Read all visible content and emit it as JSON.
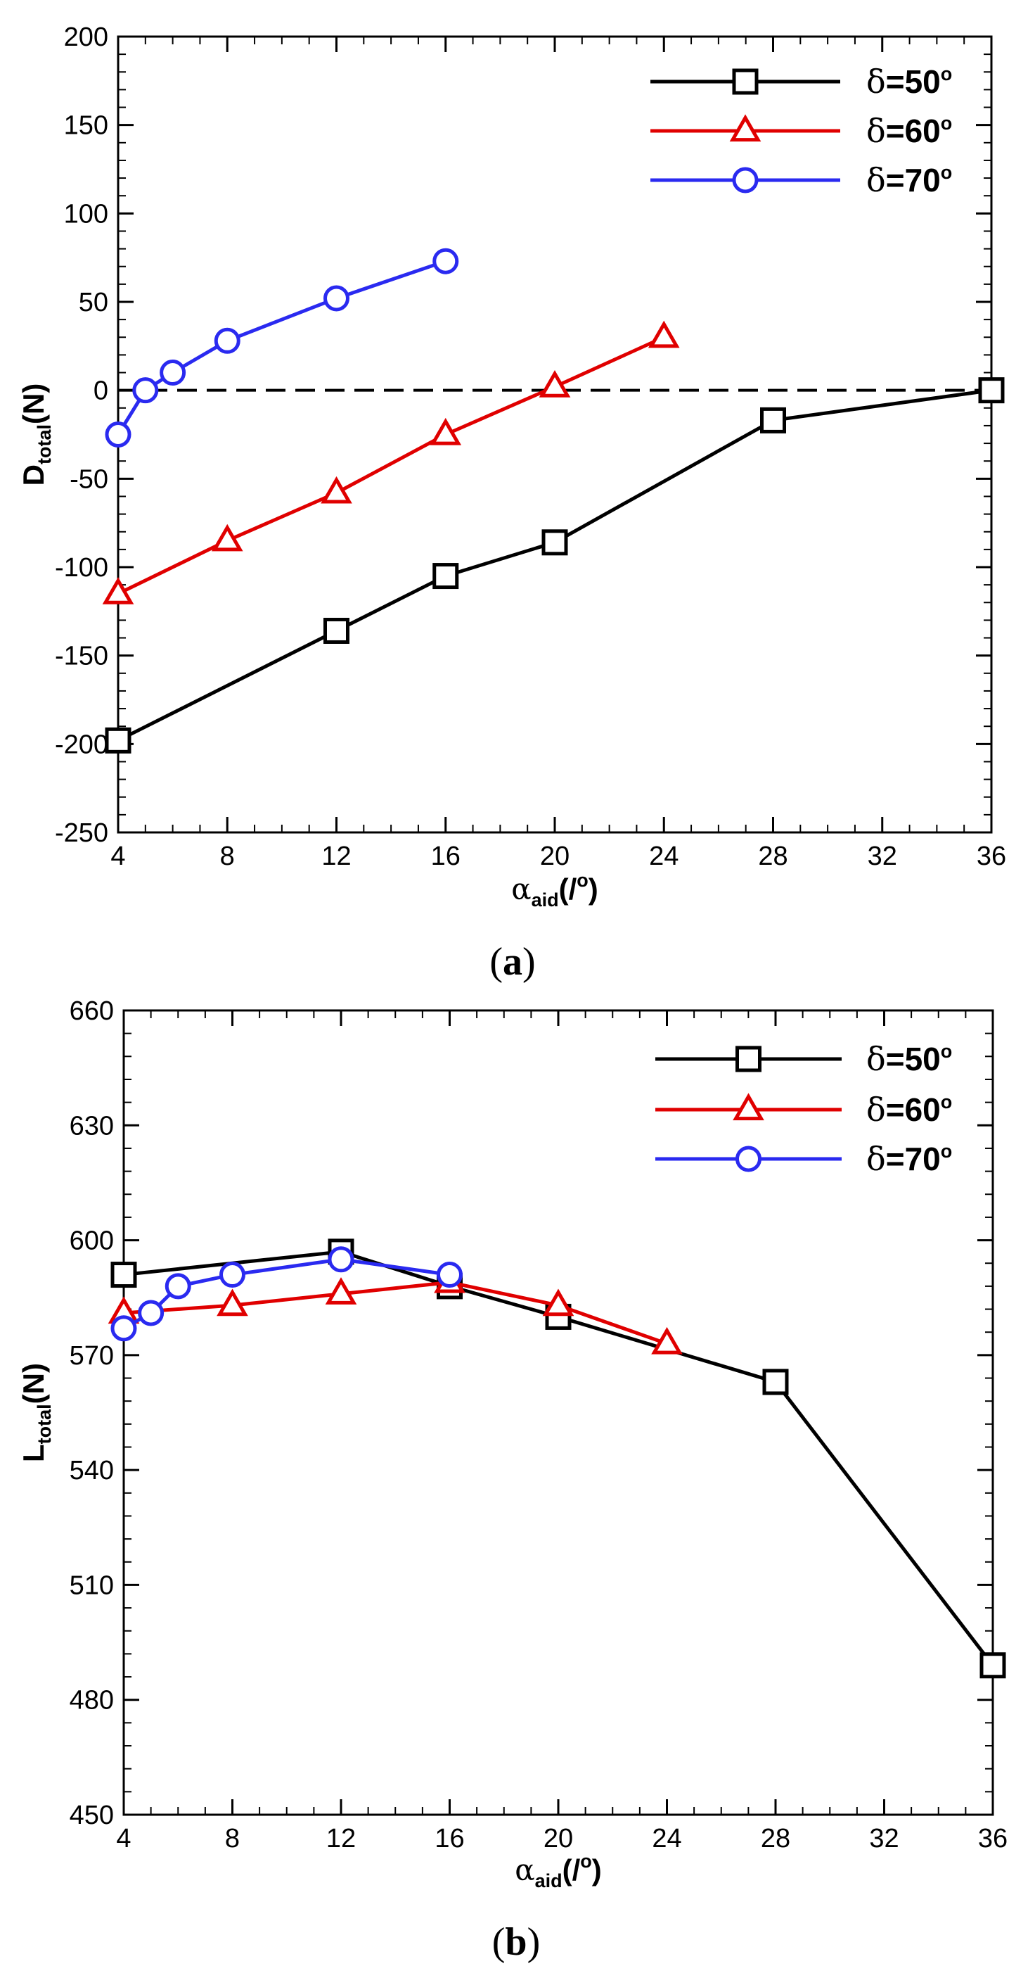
{
  "chart_data": [
    {
      "type": "line",
      "panel": "a",
      "caption": {
        "open": "(",
        "letter": "a",
        "close": ")"
      },
      "ylabel": {
        "main": "D",
        "sub": "total",
        "tail": "(N)"
      },
      "xlabel": {
        "greek": "α",
        "sub": "aid",
        "tail": "(/",
        "sup": "o",
        "close": ")"
      },
      "xlim": [
        4,
        36
      ],
      "ylim": [
        -250,
        200
      ],
      "xticks": [
        4,
        8,
        12,
        16,
        20,
        24,
        28,
        32,
        36
      ],
      "yticks": [
        -250,
        -200,
        -150,
        -100,
        -50,
        0,
        50,
        100,
        150,
        200
      ],
      "reference_line": {
        "y": 0,
        "style": "dashed"
      },
      "legend_position": "top-right",
      "series": [
        {
          "name": "δ=50°",
          "label": {
            "greek": "δ",
            "text": "=50",
            "sup": "o"
          },
          "color": "#000000",
          "marker": "square",
          "x": [
            4,
            12,
            16,
            20,
            28,
            36
          ],
          "y": [
            -198,
            -136,
            -105,
            -86,
            -17,
            0
          ]
        },
        {
          "name": "δ=60°",
          "label": {
            "greek": "δ",
            "text": "=60",
            "sup": "o"
          },
          "color": "#e00000",
          "marker": "triangle",
          "x": [
            4,
            8,
            12,
            16,
            20,
            24
          ],
          "y": [
            -115,
            -85,
            -58,
            -25,
            2,
            30
          ]
        },
        {
          "name": "δ=70°",
          "label": {
            "greek": "δ",
            "text": "=70",
            "sup": "o"
          },
          "color": "#2a2af0",
          "marker": "circle",
          "x": [
            4,
            5,
            6,
            8,
            12,
            16
          ],
          "y": [
            -25,
            0,
            10,
            28,
            52,
            73
          ]
        }
      ]
    },
    {
      "type": "line",
      "panel": "b",
      "caption": {
        "open": "(",
        "letter": "b",
        "close": ")"
      },
      "ylabel": {
        "main": "L",
        "sub": "total",
        "tail": "(N)"
      },
      "xlabel": {
        "greek": "α",
        "sub": "aid",
        "tail": "(/",
        "sup": "o",
        "close": ")"
      },
      "xlim": [
        4,
        36
      ],
      "ylim": [
        450,
        660
      ],
      "xticks": [
        4,
        8,
        12,
        16,
        20,
        24,
        28,
        32,
        36
      ],
      "yticks": [
        450,
        480,
        510,
        540,
        570,
        600,
        630,
        660
      ],
      "legend_position": "top-right",
      "series": [
        {
          "name": "δ=50°",
          "label": {
            "greek": "δ",
            "text": "=50",
            "sup": "o"
          },
          "color": "#000000",
          "marker": "square",
          "x": [
            4,
            12,
            16,
            20,
            28,
            36
          ],
          "y": [
            591,
            597,
            588,
            580,
            563,
            489
          ]
        },
        {
          "name": "δ=60°",
          "label": {
            "greek": "δ",
            "text": "=60",
            "sup": "o"
          },
          "color": "#e00000",
          "marker": "triangle",
          "x": [
            4,
            8,
            12,
            16,
            20,
            24
          ],
          "y": [
            581,
            583,
            586,
            589,
            583,
            573
          ]
        },
        {
          "name": "δ=70°",
          "label": {
            "greek": "δ",
            "text": "=70",
            "sup": "o"
          },
          "color": "#2a2af0",
          "marker": "circle",
          "x": [
            4,
            5,
            6,
            8,
            12,
            16
          ],
          "y": [
            577,
            581,
            588,
            591,
            595,
            591
          ]
        }
      ]
    }
  ]
}
